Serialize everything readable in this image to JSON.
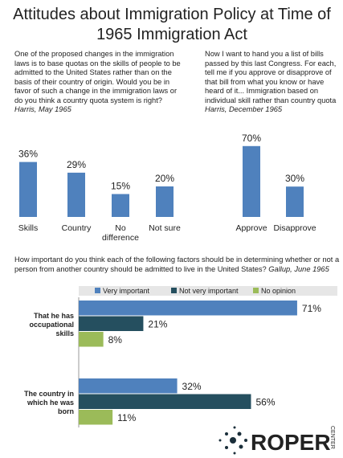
{
  "title": "Attitudes about Immigration Policy at Time of 1965 Immigration Act",
  "chart_data": [
    {
      "type": "bar",
      "question": "One of the proposed changes in the immigration laws is to base quotas on the skills of people to be admitted to the United States rather than on the basis of their country of origin. Would you be in favor of such a change in the immigration laws or do you think a country quota system is right?",
      "source": "Harris, May 1965",
      "categories": [
        "Skills",
        "Country",
        "No difference",
        "Not sure"
      ],
      "values": [
        36,
        29,
        15,
        20
      ],
      "value_labels": [
        "36%",
        "29%",
        "15%",
        "20%"
      ],
      "color": "#4f81bd"
    },
    {
      "type": "bar",
      "question": "Now I want to hand you a list of bills passed by this last Congress. For each, tell me if you approve or disapprove of that bill from what you know or have heard of it... Immigration based on individual skill rather than country quota",
      "source": "Harris, December 1965",
      "categories": [
        "Approve",
        "Disapprove"
      ],
      "values": [
        70,
        30
      ],
      "value_labels": [
        "70%",
        "30%"
      ],
      "color": "#4f81bd"
    },
    {
      "type": "hbar",
      "question": "How important do you think each of the following factors should be in determining whether or not a person from another country should be admitted to live in the United States?",
      "source": "Gallup, June 1965",
      "categories": [
        "That he has occupational skills",
        "The country in which he was born"
      ],
      "series": [
        {
          "name": "Very important",
          "color": "#4f81bd",
          "values": [
            71,
            32
          ],
          "value_labels": [
            "71%",
            "32%"
          ]
        },
        {
          "name": "Not very important",
          "color": "#254f5f",
          "values": [
            21,
            56
          ],
          "value_labels": [
            "21%",
            "56%"
          ]
        },
        {
          "name": "No opinion",
          "color": "#9bbb59",
          "values": [
            8,
            11
          ],
          "value_labels": [
            "8%",
            "11%"
          ]
        }
      ]
    }
  ],
  "logo": {
    "name": "ROPER",
    "sub": "CENTER"
  }
}
